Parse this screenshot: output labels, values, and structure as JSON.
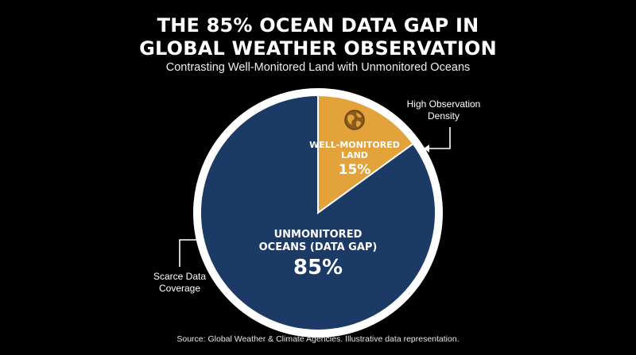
{
  "header": {
    "title_line1": "THE 85% OCEAN DATA GAP IN",
    "title_line2": "GLOBAL WEATHER OBSERVATION",
    "subtitle": "Contrasting Well-Monitored Land with Unmonitored Oceans"
  },
  "chart_data": {
    "type": "pie",
    "title": "THE 85% OCEAN DATA GAP IN GLOBAL WEATHER OBSERVATION",
    "subtitle": "Contrasting Well-Monitored Land with Unmonitored Oceans",
    "slices": [
      {
        "label_line1": "WELL-MONITORED",
        "label_line2": "LAND",
        "value": 15,
        "value_label": "15%",
        "color": "#e3a23a",
        "icon": "globe-icon"
      },
      {
        "label_line1": "UNMONITORED",
        "label_line2": "OCEANS (DATA GAP)",
        "value": 85,
        "value_label": "85%",
        "color": "#1b3a66"
      }
    ],
    "border_color": "#ffffff",
    "annotations": [
      {
        "line1": "High Observation",
        "line2": "Density",
        "target": "WELL-MONITORED LAND"
      },
      {
        "line1": "Scarce Data",
        "line2": "Coverage",
        "target": "UNMONITORED OCEANS (DATA GAP)"
      }
    ]
  },
  "footer": {
    "source": "Source: Global Weather & Climate Agencies. Illustrative data representation."
  }
}
